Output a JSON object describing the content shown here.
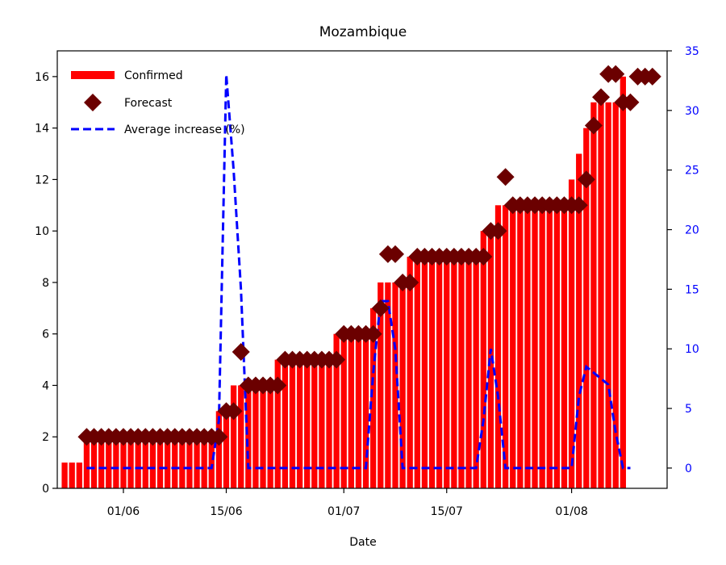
{
  "chart_data": {
    "type": "bar",
    "title": "Mozambique",
    "xlabel": "Date",
    "ylabel": "",
    "y2label": "",
    "ylim": [
      0,
      17
    ],
    "y2lim": [
      -1.7,
      35
    ],
    "yticks": [
      0,
      2,
      4,
      6,
      8,
      10,
      12,
      14,
      16
    ],
    "y2ticks": [
      0,
      5,
      10,
      15,
      20,
      25,
      30,
      35
    ],
    "x_range": [
      "2020-05-23",
      "2020-08-14"
    ],
    "xticks": [
      {
        "date": "2020-06-01",
        "label": "01/06"
      },
      {
        "date": "2020-06-15",
        "label": "15/06"
      },
      {
        "date": "2020-07-01",
        "label": "01/07"
      },
      {
        "date": "2020-07-15",
        "label": "15/07"
      },
      {
        "date": "2020-08-01",
        "label": "01/08"
      }
    ],
    "legend_position": "top-left",
    "grid": false,
    "colors": {
      "confirmed": "#ff0000",
      "forecast": "#6b0000",
      "average": "#0000ff",
      "right_axis": "#0000ff"
    },
    "series": [
      {
        "name": "Confirmed",
        "kind": "bar",
        "axis": "left",
        "points": [
          [
            "2020-05-24",
            1
          ],
          [
            "2020-05-25",
            1
          ],
          [
            "2020-05-26",
            1
          ],
          [
            "2020-05-27",
            2
          ],
          [
            "2020-05-28",
            2
          ],
          [
            "2020-05-29",
            2
          ],
          [
            "2020-05-30",
            2
          ],
          [
            "2020-05-31",
            2
          ],
          [
            "2020-06-01",
            2
          ],
          [
            "2020-06-02",
            2
          ],
          [
            "2020-06-03",
            2
          ],
          [
            "2020-06-04",
            2
          ],
          [
            "2020-06-05",
            2
          ],
          [
            "2020-06-06",
            2
          ],
          [
            "2020-06-07",
            2
          ],
          [
            "2020-06-08",
            2
          ],
          [
            "2020-06-09",
            2
          ],
          [
            "2020-06-10",
            2
          ],
          [
            "2020-06-11",
            2
          ],
          [
            "2020-06-12",
            2
          ],
          [
            "2020-06-13",
            2
          ],
          [
            "2020-06-14",
            3
          ],
          [
            "2020-06-15",
            3
          ],
          [
            "2020-06-16",
            4
          ],
          [
            "2020-06-17",
            4
          ],
          [
            "2020-06-18",
            4
          ],
          [
            "2020-06-19",
            4
          ],
          [
            "2020-06-20",
            4
          ],
          [
            "2020-06-21",
            4
          ],
          [
            "2020-06-22",
            5
          ],
          [
            "2020-06-23",
            5
          ],
          [
            "2020-06-24",
            5
          ],
          [
            "2020-06-25",
            5
          ],
          [
            "2020-06-26",
            5
          ],
          [
            "2020-06-27",
            5
          ],
          [
            "2020-06-28",
            5
          ],
          [
            "2020-06-29",
            5
          ],
          [
            "2020-06-30",
            6
          ],
          [
            "2020-07-01",
            6
          ],
          [
            "2020-07-02",
            6
          ],
          [
            "2020-07-03",
            6
          ],
          [
            "2020-07-04",
            6
          ],
          [
            "2020-07-05",
            7
          ],
          [
            "2020-07-06",
            8
          ],
          [
            "2020-07-07",
            8
          ],
          [
            "2020-07-08",
            8
          ],
          [
            "2020-07-09",
            8
          ],
          [
            "2020-07-10",
            9
          ],
          [
            "2020-07-11",
            9
          ],
          [
            "2020-07-12",
            9
          ],
          [
            "2020-07-13",
            9
          ],
          [
            "2020-07-14",
            9
          ],
          [
            "2020-07-15",
            9
          ],
          [
            "2020-07-16",
            9
          ],
          [
            "2020-07-17",
            9
          ],
          [
            "2020-07-18",
            9
          ],
          [
            "2020-07-19",
            9
          ],
          [
            "2020-07-20",
            10
          ],
          [
            "2020-07-21",
            10
          ],
          [
            "2020-07-22",
            11
          ],
          [
            "2020-07-23",
            11
          ],
          [
            "2020-07-24",
            11
          ],
          [
            "2020-07-25",
            11
          ],
          [
            "2020-07-26",
            11
          ],
          [
            "2020-07-27",
            11
          ],
          [
            "2020-07-28",
            11
          ],
          [
            "2020-07-29",
            11
          ],
          [
            "2020-07-30",
            11
          ],
          [
            "2020-07-31",
            11
          ],
          [
            "2020-08-01",
            12
          ],
          [
            "2020-08-02",
            13
          ],
          [
            "2020-08-03",
            14
          ],
          [
            "2020-08-04",
            15
          ],
          [
            "2020-08-05",
            15
          ],
          [
            "2020-08-06",
            15
          ],
          [
            "2020-08-07",
            15
          ],
          [
            "2020-08-08",
            16
          ]
        ]
      },
      {
        "name": "Forecast",
        "kind": "scatter",
        "axis": "left",
        "points": [
          [
            "2020-05-27",
            2
          ],
          [
            "2020-05-28",
            2
          ],
          [
            "2020-05-29",
            2
          ],
          [
            "2020-05-30",
            2
          ],
          [
            "2020-05-31",
            2
          ],
          [
            "2020-06-01",
            2
          ],
          [
            "2020-06-02",
            2
          ],
          [
            "2020-06-03",
            2
          ],
          [
            "2020-06-04",
            2
          ],
          [
            "2020-06-05",
            2
          ],
          [
            "2020-06-06",
            2
          ],
          [
            "2020-06-07",
            2
          ],
          [
            "2020-06-08",
            2
          ],
          [
            "2020-06-09",
            2
          ],
          [
            "2020-06-10",
            2
          ],
          [
            "2020-06-11",
            2
          ],
          [
            "2020-06-12",
            2
          ],
          [
            "2020-06-13",
            2
          ],
          [
            "2020-06-14",
            2
          ],
          [
            "2020-06-15",
            3
          ],
          [
            "2020-06-16",
            3
          ],
          [
            "2020-06-17",
            5.3
          ],
          [
            "2020-06-18",
            4
          ],
          [
            "2020-06-19",
            4
          ],
          [
            "2020-06-20",
            4
          ],
          [
            "2020-06-21",
            4
          ],
          [
            "2020-06-22",
            4
          ],
          [
            "2020-06-23",
            5
          ],
          [
            "2020-06-24",
            5
          ],
          [
            "2020-06-25",
            5
          ],
          [
            "2020-06-26",
            5
          ],
          [
            "2020-06-27",
            5
          ],
          [
            "2020-06-28",
            5
          ],
          [
            "2020-06-29",
            5
          ],
          [
            "2020-06-30",
            5
          ],
          [
            "2020-07-01",
            6
          ],
          [
            "2020-07-02",
            6
          ],
          [
            "2020-07-03",
            6
          ],
          [
            "2020-07-04",
            6
          ],
          [
            "2020-07-05",
            6
          ],
          [
            "2020-07-06",
            7
          ],
          [
            "2020-07-07",
            9.1
          ],
          [
            "2020-07-08",
            9.1
          ],
          [
            "2020-07-09",
            8
          ],
          [
            "2020-07-10",
            8
          ],
          [
            "2020-07-11",
            9
          ],
          [
            "2020-07-12",
            9
          ],
          [
            "2020-07-13",
            9
          ],
          [
            "2020-07-14",
            9
          ],
          [
            "2020-07-15",
            9
          ],
          [
            "2020-07-16",
            9
          ],
          [
            "2020-07-17",
            9
          ],
          [
            "2020-07-18",
            9
          ],
          [
            "2020-07-19",
            9
          ],
          [
            "2020-07-20",
            9
          ],
          [
            "2020-07-21",
            10
          ],
          [
            "2020-07-22",
            10
          ],
          [
            "2020-07-23",
            12.1
          ],
          [
            "2020-07-24",
            11
          ],
          [
            "2020-07-25",
            11
          ],
          [
            "2020-07-26",
            11
          ],
          [
            "2020-07-27",
            11
          ],
          [
            "2020-07-28",
            11
          ],
          [
            "2020-07-29",
            11
          ],
          [
            "2020-07-30",
            11
          ],
          [
            "2020-07-31",
            11
          ],
          [
            "2020-08-01",
            11
          ],
          [
            "2020-08-02",
            11
          ],
          [
            "2020-08-03",
            12
          ],
          [
            "2020-08-04",
            14.1
          ],
          [
            "2020-08-05",
            15.2
          ],
          [
            "2020-08-06",
            16.1
          ],
          [
            "2020-08-07",
            16.1
          ],
          [
            "2020-08-08",
            15
          ],
          [
            "2020-08-09",
            15
          ],
          [
            "2020-08-10",
            16
          ],
          [
            "2020-08-11",
            16
          ],
          [
            "2020-08-12",
            16
          ]
        ]
      },
      {
        "name": "Average increase (%)",
        "kind": "line",
        "axis": "right",
        "style": "dashed",
        "points": [
          [
            "2020-05-27",
            0
          ],
          [
            "2020-06-13",
            0
          ],
          [
            "2020-06-14",
            4
          ],
          [
            "2020-06-15",
            33
          ],
          [
            "2020-06-16",
            25
          ],
          [
            "2020-06-17",
            15
          ],
          [
            "2020-06-18",
            0
          ],
          [
            "2020-07-04",
            0
          ],
          [
            "2020-07-05",
            8
          ],
          [
            "2020-07-06",
            14
          ],
          [
            "2020-07-07",
            14
          ],
          [
            "2020-07-08",
            10
          ],
          [
            "2020-07-09",
            0
          ],
          [
            "2020-07-19",
            0
          ],
          [
            "2020-07-20",
            4
          ],
          [
            "2020-07-21",
            10
          ],
          [
            "2020-07-22",
            6
          ],
          [
            "2020-07-23",
            0
          ],
          [
            "2020-08-01",
            0
          ],
          [
            "2020-08-02",
            6
          ],
          [
            "2020-08-03",
            8.5
          ],
          [
            "2020-08-04",
            8
          ],
          [
            "2020-08-05",
            7.5
          ],
          [
            "2020-08-06",
            7
          ],
          [
            "2020-08-07",
            3
          ],
          [
            "2020-08-08",
            0
          ],
          [
            "2020-08-09",
            0
          ]
        ]
      }
    ]
  }
}
